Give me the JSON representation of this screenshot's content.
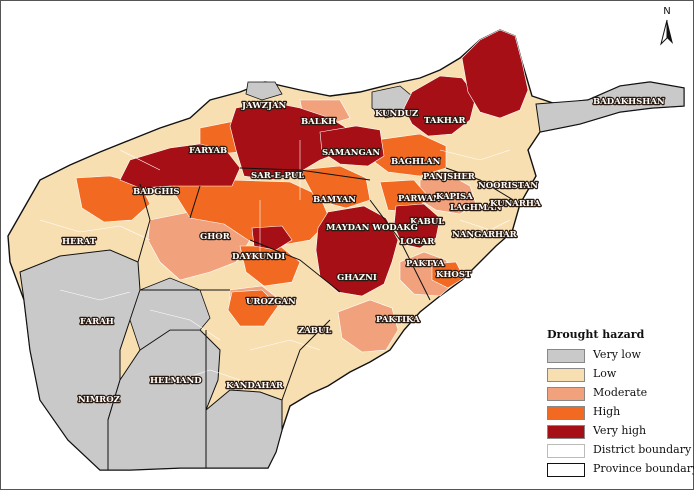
{
  "colors": {
    "very_low": "#c9c9c9",
    "low": "#f7dfb2",
    "moderate": "#f1a17c",
    "high": "#f26a21",
    "very_high": "#a50f15",
    "district_boundary": "#ffffff",
    "province_boundary": "#111111",
    "background": "#ffffff"
  },
  "north_arrow": {
    "label": "N",
    "icon": "north-arrow-icon"
  },
  "legend": {
    "title": "Drought hazard",
    "items": [
      {
        "label": "Very low",
        "class": "very_low"
      },
      {
        "label": "Low",
        "class": "low"
      },
      {
        "label": "Moderate",
        "class": "moderate"
      },
      {
        "label": "High",
        "class": "high"
      },
      {
        "label": "Very high",
        "class": "very_high"
      },
      {
        "label": "District boundary",
        "class": "district_boundary"
      },
      {
        "label": "Province boundary",
        "class": "province_boundary"
      }
    ]
  },
  "provinces": [
    {
      "name": "JAWZJAN",
      "hazard": "very_high"
    },
    {
      "name": "BALKH",
      "hazard": "very_high"
    },
    {
      "name": "KUNDUZ",
      "hazard": "very_low"
    },
    {
      "name": "TAKHAR",
      "hazard": "very_high"
    },
    {
      "name": "BADAKHSHAN",
      "hazard": "very_high"
    },
    {
      "name": "FARYAB",
      "hazard": "very_high"
    },
    {
      "name": "SAMANGAN",
      "hazard": "very_high"
    },
    {
      "name": "BAGHLAN",
      "hazard": "high"
    },
    {
      "name": "SAR-E-PUL",
      "hazard": "very_high"
    },
    {
      "name": "PANJSHER",
      "hazard": "moderate"
    },
    {
      "name": "NOORISTAN",
      "hazard": "low"
    },
    {
      "name": "BADGHIS",
      "hazard": "high"
    },
    {
      "name": "BAMYAN",
      "hazard": "high"
    },
    {
      "name": "PARWAN",
      "hazard": "high"
    },
    {
      "name": "KAPISA",
      "hazard": "high"
    },
    {
      "name": "LAGHMAN",
      "hazard": "moderate"
    },
    {
      "name": "KUNARHA",
      "hazard": "low"
    },
    {
      "name": "KABUL",
      "hazard": "very_high"
    },
    {
      "name": "MAYDAN WODAKG",
      "hazard": "very_high"
    },
    {
      "name": "HERAT",
      "hazard": "low"
    },
    {
      "name": "GHOR",
      "hazard": "moderate"
    },
    {
      "name": "LOGAR",
      "hazard": "very_high"
    },
    {
      "name": "NANGARHAR",
      "hazard": "low"
    },
    {
      "name": "DAYKUNDI",
      "hazard": "high"
    },
    {
      "name": "PAKTYA",
      "hazard": "moderate"
    },
    {
      "name": "GHAZNI",
      "hazard": "very_high"
    },
    {
      "name": "KHOST",
      "hazard": "moderate"
    },
    {
      "name": "FARAH",
      "hazard": "very_low"
    },
    {
      "name": "UROZGAN",
      "hazard": "high"
    },
    {
      "name": "PAKTIKA",
      "hazard": "moderate"
    },
    {
      "name": "ZABUL",
      "hazard": "low"
    },
    {
      "name": "HELMAND",
      "hazard": "very_low"
    },
    {
      "name": "KANDAHAR",
      "hazard": "very_low"
    },
    {
      "name": "NIMROZ",
      "hazard": "very_low"
    }
  ]
}
